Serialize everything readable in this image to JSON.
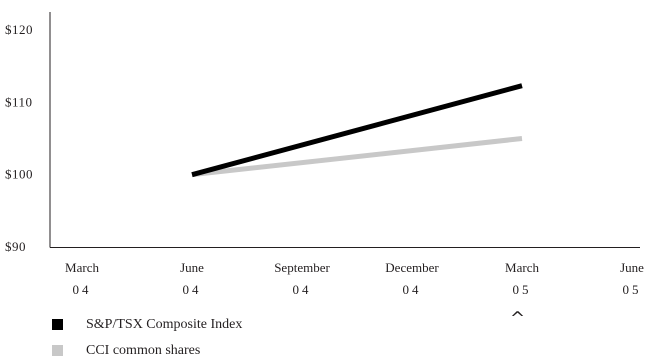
{
  "chart_data": {
    "type": "line",
    "categories": [
      "March 04",
      "June 04",
      "September 04",
      "December 04",
      "March 05",
      "June 05"
    ],
    "x_tick_labels": [
      [
        "March",
        "04"
      ],
      [
        "June",
        "04"
      ],
      [
        "September",
        "04"
      ],
      [
        "December",
        "04"
      ],
      [
        "March",
        "05"
      ],
      [
        "June",
        "05"
      ]
    ],
    "y_tick_labels": [
      "$120",
      "$110",
      "$100",
      "$90"
    ],
    "y_ticks": [
      120,
      110,
      100,
      90
    ],
    "ylim": [
      90,
      120
    ],
    "title": "",
    "xlabel": "",
    "ylabel": "",
    "grid": false,
    "legend_placement": "bottom-left",
    "series": [
      {
        "name": "S&P/TSX Composite Index",
        "color": "#000000",
        "values": [
          null,
          100,
          null,
          null,
          112.3,
          null
        ]
      },
      {
        "name": "CCI common shares",
        "color": "#c8c8c8",
        "values": [
          null,
          100,
          null,
          null,
          105,
          null
        ]
      }
    ]
  },
  "annotation": {
    "marker": "^"
  }
}
